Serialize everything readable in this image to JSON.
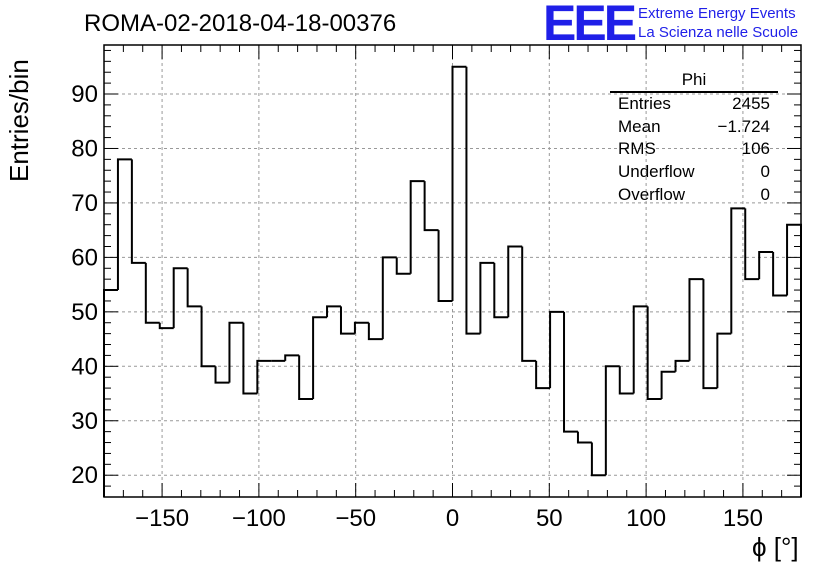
{
  "title": "ROMA-02-2018-04-18-00376",
  "logo": {
    "mark": "EEE",
    "line1": "Extreme Energy Events",
    "line2": "La Scienza nelle Scuole",
    "color": "#1f1fe8"
  },
  "stats": {
    "name": "Phi",
    "rows": [
      {
        "label": "Entries",
        "value": "2455"
      },
      {
        "label": "Mean",
        "value": "−1.724"
      },
      {
        "label": "RMS",
        "value": "106"
      },
      {
        "label": "Underflow",
        "value": "0"
      },
      {
        "label": "Overflow",
        "value": "0"
      }
    ]
  },
  "chart_data": {
    "type": "bar",
    "style": "step-histogram",
    "xlabel": "ϕ [°]",
    "ylabel": "Entries/bin",
    "xlim": [
      -180,
      180
    ],
    "ylim": [
      16,
      99
    ],
    "bin_width": 7.2,
    "xticks": [
      -150,
      -100,
      -50,
      0,
      50,
      100,
      150
    ],
    "xtick_labels": [
      "−150",
      "−100",
      "−50",
      "0",
      "50",
      "100",
      "150"
    ],
    "yticks": [
      20,
      30,
      40,
      50,
      60,
      70,
      80,
      90
    ],
    "grid": true,
    "values": [
      54,
      78,
      59,
      48,
      47,
      58,
      51,
      40,
      37,
      48,
      35,
      41,
      41,
      42,
      34,
      49,
      51,
      46,
      48,
      45,
      60,
      57,
      74,
      65,
      52,
      95,
      46,
      59,
      49,
      62,
      41,
      36,
      50,
      28,
      26,
      20,
      40,
      35,
      51,
      34,
      39,
      41,
      56,
      36,
      46,
      69,
      56,
      61,
      53,
      66
    ]
  }
}
